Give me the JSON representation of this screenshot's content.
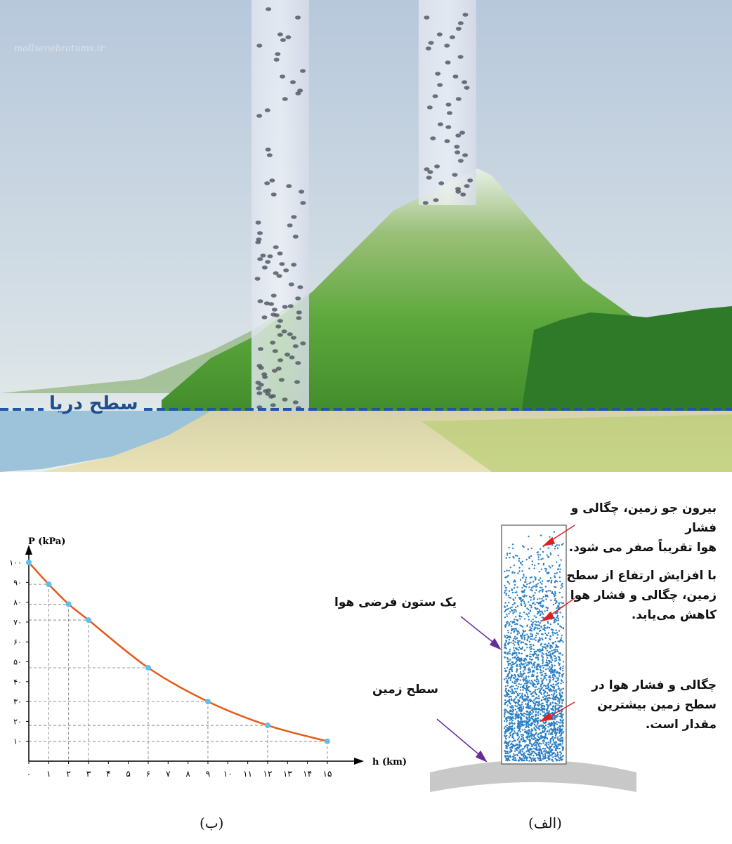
{
  "scene": {
    "sea_level_label": "سطح دریا",
    "watermark": "mollsenebratums.ir",
    "colors": {
      "sky_top": "#b9c9dc",
      "sky_bottom": "#e7ece8",
      "mountain": "#6fae4a",
      "sea_line": "#1f56a8",
      "sea": "#9cc3d9"
    }
  },
  "figure_a": {
    "caption": "(الف)",
    "column_label": "یک ستون فرضی هوا",
    "ground_label": "سطح زمین",
    "note_top": [
      "بیرون جو زمین، چگالی و فشار",
      "هوا تقریباً صفر می شود."
    ],
    "note_middle": [
      "با افزایش ارتفاع از سطح",
      "زمین، چگالی و فشار هوا",
      "کاهش می‌یابد."
    ],
    "note_bottom": [
      "چگالی و فشار هوا در",
      "سطح زمین بیشترین",
      "مقدار است."
    ],
    "colors": {
      "dots": "#2a7fc4",
      "arrow_red": "#e02020",
      "arrow_purple": "#6a2a9a",
      "ground": "#c8c8c8"
    }
  },
  "chart_data": {
    "type": "line",
    "caption": "(ب)",
    "ylabel": "P (kPa)",
    "xlabel": "h (km)",
    "x_ticks": [
      "۰",
      "۱",
      "۲",
      "۳",
      "۴",
      "۵",
      "۶",
      "۷",
      "۸",
      "۹",
      "۱۰",
      "۱۱",
      "۱۲",
      "۱۳",
      "۱۴",
      "۱۵"
    ],
    "x_tick_values": [
      0,
      1,
      2,
      3,
      4,
      5,
      6,
      7,
      8,
      9,
      10,
      11,
      12,
      13,
      14,
      15
    ],
    "y_ticks": [
      "۱۰",
      "۲۰",
      "۳۰",
      "۴۰",
      "۵۰",
      "۶۰",
      "۷۰",
      "۸۰",
      "۹۰",
      "۱۰۰"
    ],
    "y_tick_values": [
      10,
      20,
      30,
      40,
      50,
      60,
      70,
      80,
      90,
      100
    ],
    "xlim": [
      0,
      15.7
    ],
    "ylim": [
      0,
      110
    ],
    "grid": "dashed guides to marked points",
    "series": [
      {
        "x": [
          0,
          1,
          2,
          3,
          6,
          9,
          12,
          15
        ],
        "y": [
          100,
          89,
          79,
          71,
          47,
          30,
          18,
          10
        ],
        "color": "#e8591a",
        "marker_color": "#5bc0eb"
      }
    ]
  }
}
